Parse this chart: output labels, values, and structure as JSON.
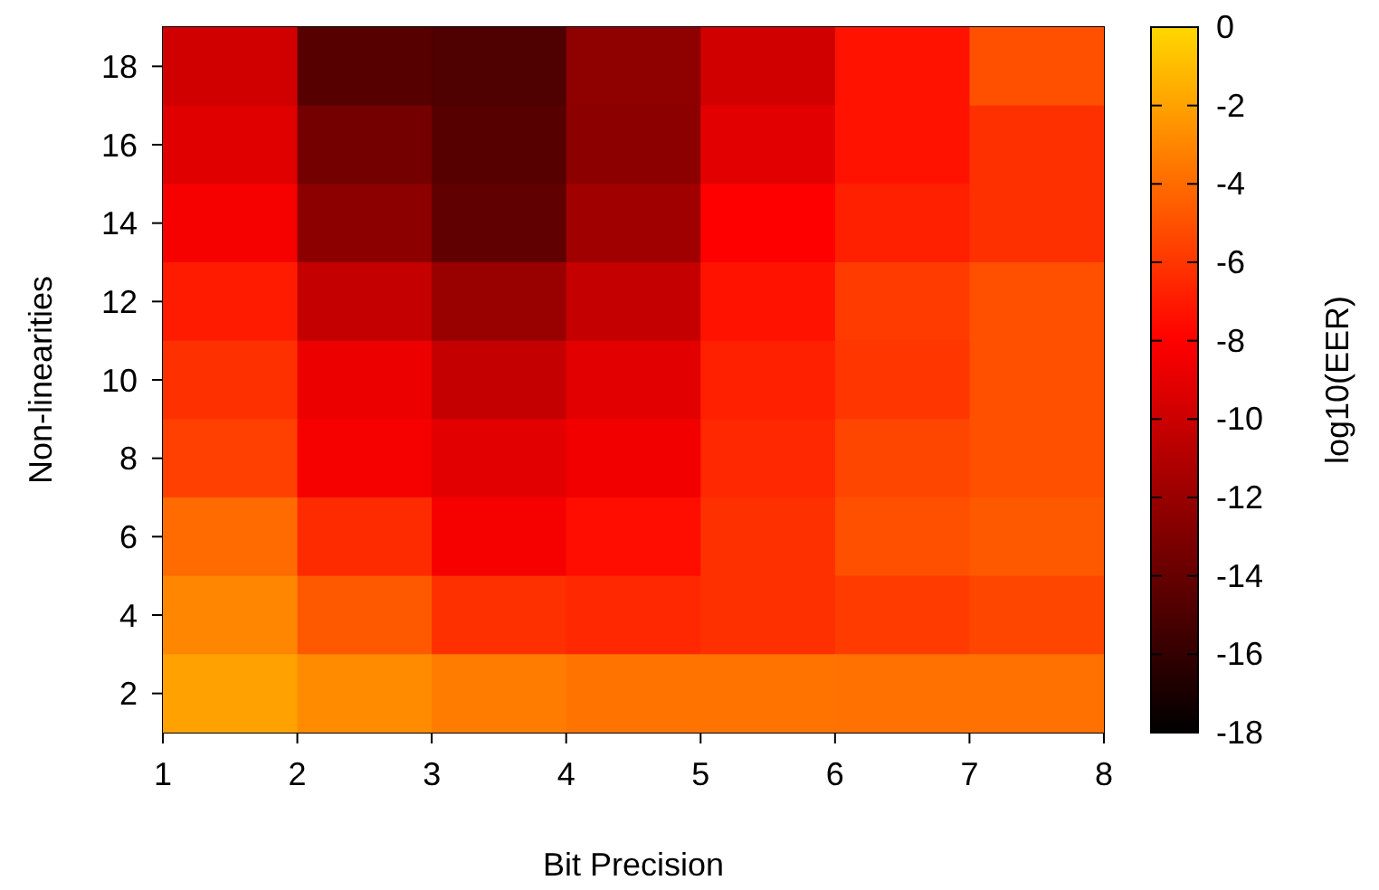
{
  "chart_data": {
    "type": "heatmap",
    "xlabel": "Bit Precision",
    "ylabel": "Non-linearities",
    "clabel": "log10(EER)",
    "xlim": [
      1,
      8
    ],
    "xticks": [
      1,
      2,
      3,
      4,
      5,
      6,
      7,
      8
    ],
    "ylim": [
      1,
      19
    ],
    "yticks": [
      2,
      4,
      6,
      8,
      10,
      12,
      14,
      16,
      18
    ],
    "clim": [
      -18,
      0
    ],
    "cticks": [
      0,
      -2,
      -4,
      -6,
      -8,
      -10,
      -12,
      -14,
      -16,
      -18
    ],
    "cells": [
      [
        -9.8,
        -14.6,
        -14.9,
        -12.4,
        -9.8,
        -7.3,
        -5.0
      ],
      [
        -9.2,
        -13.4,
        -14.6,
        -12.5,
        -9.1,
        -7.3,
        -6.2
      ],
      [
        -8.3,
        -12.5,
        -14.2,
        -11.7,
        -8.0,
        -6.8,
        -6.2
      ],
      [
        -7.0,
        -10.3,
        -12.0,
        -10.3,
        -7.3,
        -5.8,
        -5.0
      ],
      [
        -6.2,
        -8.7,
        -10.3,
        -9.1,
        -6.8,
        -6.0,
        -5.0
      ],
      [
        -5.6,
        -8.3,
        -9.1,
        -8.5,
        -6.5,
        -5.4,
        -5.0
      ],
      [
        -4.0,
        -6.4,
        -8.3,
        -7.5,
        -6.2,
        -5.0,
        -4.7
      ],
      [
        -3.0,
        -4.7,
        -6.2,
        -6.5,
        -6.2,
        -5.8,
        -5.4
      ],
      [
        -2.0,
        -2.8,
        -3.4,
        -3.7,
        -3.7,
        -3.8,
        -3.8
      ]
    ]
  }
}
